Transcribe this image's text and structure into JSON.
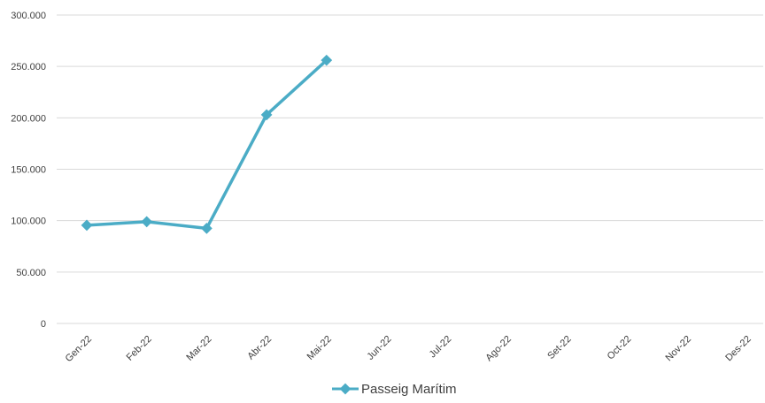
{
  "chart_data": {
    "type": "line",
    "categories": [
      "Gen-22",
      "Feb-22",
      "Mar-22",
      "Abr-22",
      "Mai-22",
      "Jun-22",
      "Jul-22",
      "Ago-22",
      "Set-22",
      "Oct-22",
      "Nov-22",
      "Des-22"
    ],
    "series": [
      {
        "name": "Passeig Marítim",
        "color": "#4bacc6",
        "values": [
          95500,
          99000,
          92500,
          203000,
          256000,
          null,
          null,
          null,
          null,
          null,
          null,
          null
        ]
      }
    ],
    "y_ticks": [
      "0",
      "50.000",
      "100.000",
      "150.000",
      "200.000",
      "250.000",
      "300.000"
    ],
    "ylim": [
      0,
      300000
    ],
    "grid": true,
    "legend": "bottom",
    "gridline_color": "#d9d9d9"
  }
}
